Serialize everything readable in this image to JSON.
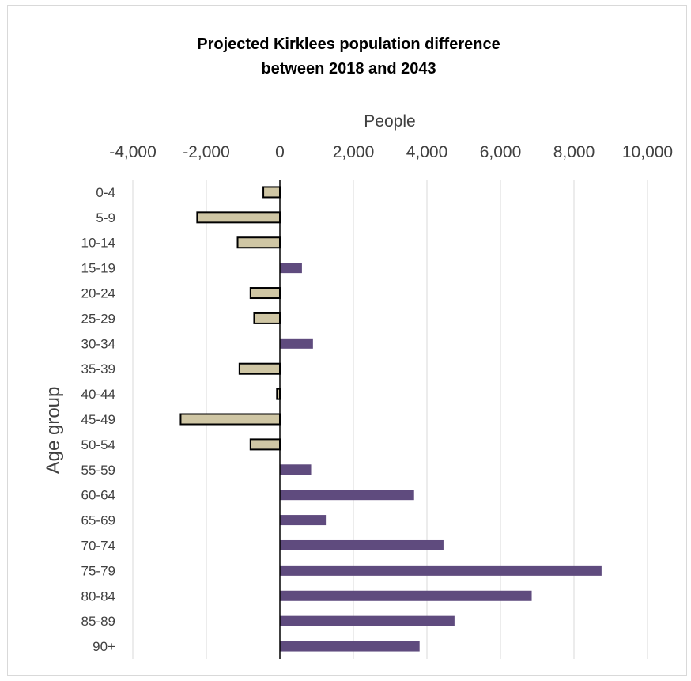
{
  "chart_data": {
    "type": "bar",
    "orientation": "horizontal",
    "title_line1": "Projected Kirklees population difference",
    "title_line2": "between 2018 and 2043",
    "xlabel": "People",
    "ylabel": "Age group",
    "xlim": [
      -4000,
      10000
    ],
    "x_ticks": [
      "-4,000",
      "-2,000",
      "0",
      "2,000",
      "4,000",
      "6,000",
      "8,000",
      "10,000"
    ],
    "x_tick_values": [
      -4000,
      -2000,
      0,
      2000,
      4000,
      6000,
      8000,
      10000
    ],
    "x_axis_position": "top",
    "grid": true,
    "categories": [
      "0-4",
      "5-9",
      "10-14",
      "15-19",
      "20-24",
      "25-29",
      "30-34",
      "35-39",
      "40-44",
      "45-49",
      "50-54",
      "55-59",
      "60-64",
      "65-69",
      "70-74",
      "75-79",
      "80-84",
      "85-89",
      "90+"
    ],
    "values": [
      -450,
      -2250,
      -1150,
      600,
      -800,
      -700,
      900,
      -1100,
      -80,
      -2700,
      -800,
      850,
      3650,
      1250,
      4450,
      8750,
      6850,
      4750,
      3800
    ],
    "colors": {
      "negative_fill": "#cfc6a4",
      "negative_stroke": "#000000",
      "positive_fill": "#5f4b7e",
      "gridline": "#d9d9d9",
      "zero_axis": "#000000"
    }
  }
}
